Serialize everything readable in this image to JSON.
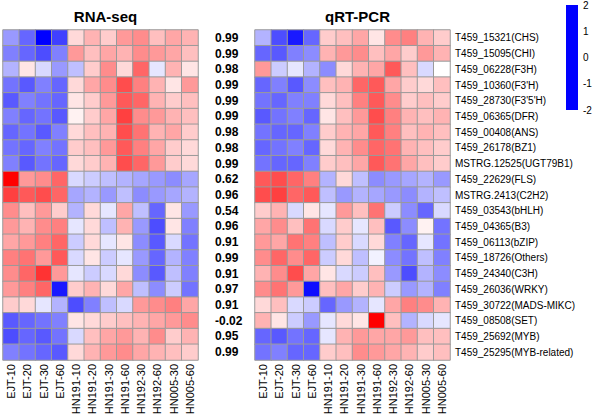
{
  "chart_data": {
    "type": "heatmap",
    "x": [
      "EJT-10",
      "EJT-20",
      "EJT-30",
      "EJT-60",
      "HN191-10",
      "HN191-20",
      "HN191-30",
      "HN191-60",
      "HN192-30",
      "HN192-60",
      "HN005-30",
      "HN005-60"
    ],
    "y": [
      "T459_15321(CHS)",
      "T459_15095(CHI)",
      "T459_06228(F3H)",
      "T459_10360(F3'H)",
      "T459_28730(F3'5'H)",
      "T459_06365(DFR)",
      "T459_00408(ANS)",
      "T459_26178(BZ1)",
      "MSTRG.12525(UGT79B1)",
      "T459_22629(FLS)",
      "MSTRG.2413(C2H2)",
      "T459_03543(bHLH)",
      "T459_04365(B3)",
      "T459_06113(bZIP)",
      "T459_18726(Others)",
      "T459_24340(C3H)",
      "T459_26036(WRKY)",
      "T459_30722(MADS-MIKC)",
      "T459_08508(SET)",
      "T459_25692(MYB)",
      "T459_25295(MYB-related)"
    ],
    "correlations": [
      0.99,
      0.99,
      0.98,
      0.99,
      0.99,
      0.99,
      0.98,
      0.98,
      0.99,
      0.62,
      0.96,
      0.54,
      0.96,
      0.91,
      0.99,
      0.91,
      0.97,
      0.91,
      -0.02,
      0.95,
      0.99
    ],
    "panels": [
      {
        "title": "RNA-seq",
        "cells": [
          [
            -0.8,
            -1.2,
            -2.0,
            -1.5,
            0.3,
            0.6,
            0.4,
            0.8,
            0.9,
            0.5,
            0.7,
            0.6
          ],
          [
            -1.0,
            -1.2,
            -1.4,
            -1.0,
            0.8,
            0.5,
            0.7,
            0.6,
            0.9,
            0.8,
            0.7,
            0.5
          ],
          [
            -0.6,
            0.2,
            -0.3,
            -0.8,
            -0.5,
            0.4,
            0.9,
            0.3,
            1.2,
            -0.2,
            0.6,
            0.2
          ],
          [
            -1.1,
            -1.3,
            -1.0,
            -1.2,
            0.3,
            0.7,
            0.9,
            1.4,
            1.0,
            0.6,
            0.2,
            0.8
          ],
          [
            -1.3,
            -1.0,
            -1.1,
            -1.2,
            0.2,
            0.4,
            0.8,
            1.3,
            1.2,
            0.6,
            0.4,
            0.5
          ],
          [
            -1.0,
            -1.2,
            -1.1,
            -1.3,
            0.1,
            0.4,
            0.7,
            1.5,
            0.9,
            0.8,
            0.6,
            0.5
          ],
          [
            -1.2,
            -1.1,
            -1.3,
            -1.0,
            0.3,
            0.5,
            0.6,
            1.4,
            1.1,
            0.6,
            0.7,
            0.4
          ],
          [
            -1.1,
            -1.2,
            -1.0,
            -1.1,
            0.4,
            0.5,
            0.8,
            1.3,
            1.0,
            0.7,
            0.4,
            0.3
          ],
          [
            -1.0,
            -1.3,
            -1.1,
            -1.2,
            0.3,
            0.4,
            0.6,
            1.4,
            1.2,
            0.8,
            0.4,
            0.3
          ],
          [
            2.0,
            0.8,
            0.9,
            1.2,
            -0.3,
            -0.4,
            -0.5,
            -0.6,
            -0.7,
            -0.8,
            -0.9,
            -0.7
          ],
          [
            1.5,
            1.3,
            1.4,
            1.2,
            -0.7,
            -0.6,
            -0.8,
            -0.5,
            -0.9,
            -0.8,
            -0.7,
            -0.6
          ],
          [
            0.9,
            0.5,
            0.8,
            0.4,
            -0.6,
            0.3,
            -0.2,
            0.7,
            -0.5,
            -1.2,
            0.2,
            -0.8
          ],
          [
            0.8,
            0.6,
            0.9,
            1.0,
            -0.2,
            0.3,
            -0.5,
            0.6,
            -0.8,
            -1.4,
            0.2,
            -1.0
          ],
          [
            0.7,
            0.8,
            1.0,
            1.2,
            -0.4,
            0.3,
            -0.2,
            0.2,
            -0.9,
            -1.3,
            -0.3,
            -1.1
          ],
          [
            1.0,
            1.1,
            0.8,
            1.3,
            -0.3,
            0.2,
            -0.4,
            -0.2,
            -0.8,
            -1.2,
            -0.6,
            -1.0
          ],
          [
            0.9,
            1.2,
            1.6,
            0.8,
            -0.2,
            -0.4,
            -0.3,
            0.3,
            -0.9,
            -1.3,
            -0.5,
            -1.0
          ],
          [
            0.8,
            1.0,
            1.2,
            -1.8,
            0.4,
            0.6,
            0.3,
            0.7,
            -0.5,
            -0.9,
            -0.4,
            -1.1
          ],
          [
            0.4,
            0.3,
            -0.2,
            -0.6,
            -1.4,
            -1.0,
            -0.5,
            -0.3,
            0.8,
            0.9,
            1.0,
            0.7
          ],
          [
            -1.3,
            -1.2,
            -1.1,
            -1.0,
            0.2,
            0.3,
            0.4,
            0.5,
            0.6,
            0.7,
            0.8,
            0.9
          ],
          [
            -1.4,
            -1.2,
            -1.3,
            -1.1,
            -0.3,
            0.5,
            0.7,
            0.8,
            0.6,
            0.9,
            0.4,
            0.6
          ],
          [
            -1.0,
            -1.1,
            -1.2,
            -1.3,
            0.3,
            0.6,
            0.8,
            0.9,
            0.7,
            0.6,
            0.5,
            0.4
          ]
        ]
      },
      {
        "title": "qRT-PCR",
        "cells": [
          [
            -0.6,
            -1.4,
            -1.8,
            -1.2,
            0.4,
            0.5,
            0.7,
            0.2,
            0.9,
            1.0,
            0.6,
            0.4
          ],
          [
            -1.2,
            -1.3,
            -1.0,
            -0.9,
            0.6,
            0.8,
            0.9,
            0.5,
            0.7,
            0.4,
            0.8,
            0.6
          ],
          [
            0.8,
            -0.4,
            -0.2,
            -0.6,
            -0.9,
            0.3,
            0.6,
            0.7,
            1.3,
            0.5,
            -0.3,
            0.0
          ],
          [
            -1.2,
            -1.0,
            -1.3,
            -0.9,
            0.5,
            0.6,
            1.2,
            1.3,
            0.7,
            0.4,
            0.3,
            0.5
          ],
          [
            -1.1,
            -1.2,
            -1.0,
            -1.0,
            0.3,
            0.5,
            1.0,
            1.3,
            0.9,
            0.4,
            0.5,
            0.4
          ],
          [
            -1.3,
            -1.1,
            -1.0,
            -1.2,
            0.2,
            0.5,
            0.8,
            1.4,
            1.0,
            0.6,
            0.5,
            0.6
          ],
          [
            -1.1,
            -1.2,
            -1.2,
            -1.0,
            0.4,
            0.6,
            0.7,
            1.3,
            1.0,
            0.5,
            0.6,
            0.5
          ],
          [
            -1.2,
            -1.1,
            -1.0,
            -1.2,
            0.3,
            0.6,
            0.9,
            1.2,
            1.1,
            0.6,
            0.5,
            0.4
          ],
          [
            -1.1,
            -1.2,
            -1.2,
            -1.0,
            0.4,
            0.5,
            0.7,
            1.3,
            1.1,
            0.7,
            0.5,
            0.4
          ],
          [
            1.3,
            1.4,
            1.2,
            1.0,
            -0.6,
            0.3,
            -0.5,
            -0.9,
            -0.8,
            -0.7,
            -0.6,
            -0.8
          ],
          [
            1.4,
            1.5,
            1.2,
            1.3,
            -0.5,
            -0.8,
            -0.6,
            -0.7,
            -0.8,
            -0.9,
            -0.6,
            -0.5
          ],
          [
            0.4,
            0.6,
            -0.3,
            0.2,
            -0.2,
            0.8,
            0.5,
            1.1,
            -0.4,
            -0.9,
            -1.2,
            -0.3
          ],
          [
            0.7,
            0.9,
            0.5,
            1.1,
            -0.3,
            0.4,
            -0.2,
            0.5,
            -1.3,
            -0.9,
            0.1,
            -1.1
          ],
          [
            0.8,
            0.7,
            1.1,
            1.0,
            -0.5,
            0.4,
            -0.3,
            0.3,
            -1.0,
            -1.2,
            -0.2,
            -1.1
          ],
          [
            0.9,
            1.2,
            0.9,
            1.2,
            -0.4,
            0.3,
            -0.5,
            -0.1,
            -0.9,
            -1.1,
            -0.5,
            -1.0
          ],
          [
            0.6,
            0.9,
            1.4,
            0.7,
            0.2,
            -0.3,
            -0.4,
            0.5,
            -0.8,
            -1.4,
            -0.6,
            -0.9
          ],
          [
            0.9,
            1.1,
            0.8,
            -1.9,
            0.5,
            0.7,
            0.4,
            0.6,
            -0.4,
            -0.8,
            -0.6,
            -1.0
          ],
          [
            0.3,
            0.5,
            -0.3,
            -0.4,
            -1.2,
            -0.8,
            -0.6,
            -0.2,
            0.7,
            1.0,
            0.9,
            0.6
          ],
          [
            0.6,
            0.2,
            -0.4,
            -0.8,
            -0.2,
            0.3,
            0.2,
            2.0,
            0.5,
            -0.6,
            -0.3,
            -0.2
          ],
          [
            -1.2,
            -1.3,
            -1.1,
            -1.2,
            -0.2,
            0.6,
            0.8,
            0.7,
            0.7,
            0.8,
            0.5,
            0.5
          ],
          [
            -1.1,
            -1.0,
            -1.2,
            -1.2,
            0.4,
            0.5,
            0.9,
            0.8,
            0.7,
            0.6,
            0.4,
            0.5
          ]
        ]
      }
    ],
    "colorbar": {
      "range": [
        -2,
        2
      ],
      "ticks": [
        2,
        1,
        0,
        -1,
        -2
      ],
      "colors": [
        "#0000ff",
        "#ffffff",
        "#ff0000"
      ]
    }
  }
}
